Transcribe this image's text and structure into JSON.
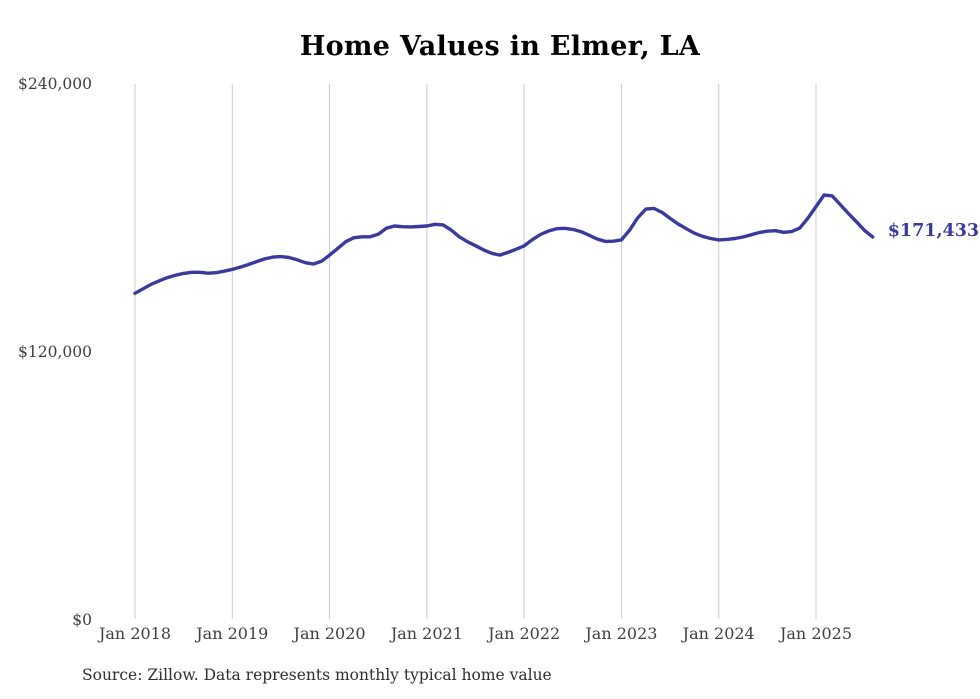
{
  "chart_data": {
    "type": "line",
    "title": "Home Values in Elmer, LA",
    "source_note": "Source: Zillow. Data represents monthly typical home value",
    "x_start_month": "Jan 2018",
    "x_frequency": "monthly",
    "x_tick_labels": [
      "Jan 2018",
      "Jan 2019",
      "Jan 2020",
      "Jan 2021",
      "Jan 2022",
      "Jan 2023",
      "Jan 2024",
      "Jan 2025"
    ],
    "y_ticks": [
      {
        "label": "$240,000",
        "value": 240000
      },
      {
        "label": "$120,000",
        "value": 120000
      },
      {
        "label": "$0",
        "value": 0
      }
    ],
    "ylim": [
      0,
      240000
    ],
    "grid": "vertical-only",
    "legend": "none",
    "line_color": "#3a3a9c",
    "gridline_color": "#cccccc",
    "end_label": "$171,433",
    "end_value": 171433,
    "series": [
      {
        "name": "Typical home value",
        "values": [
          146300,
          148300,
          150300,
          151900,
          153300,
          154400,
          155200,
          155700,
          155700,
          155300,
          155500,
          156200,
          157000,
          158000,
          159200,
          160500,
          161700,
          162500,
          162700,
          162300,
          161300,
          160000,
          159400,
          160600,
          163400,
          166400,
          169400,
          171200,
          171600,
          171600,
          172700,
          175400,
          176400,
          176100,
          176000,
          176200,
          176400,
          177200,
          176900,
          174600,
          171600,
          169400,
          167600,
          165700,
          164200,
          163400,
          164600,
          166000,
          167500,
          170300,
          172600,
          174200,
          175200,
          175400,
          174900,
          173900,
          172300,
          170600,
          169500,
          169600,
          170200,
          174500,
          180000,
          184000,
          184300,
          182500,
          179800,
          177300,
          175200,
          173200,
          171800,
          170800,
          170200,
          170400,
          170800,
          171500,
          172500,
          173500,
          174100,
          174300,
          173600,
          173900,
          175500,
          179900,
          185100,
          190300,
          189900,
          186000,
          182000,
          178300,
          174400,
          171433
        ]
      }
    ]
  }
}
